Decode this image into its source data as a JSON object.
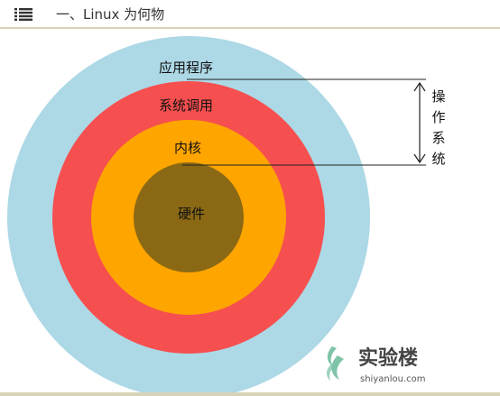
{
  "header": {
    "title": "一、Linux 为何物",
    "icon": "list-icon"
  },
  "diagram": {
    "layers": [
      {
        "label": "应用程序",
        "color": "#add8e6"
      },
      {
        "label": "系统调用",
        "color": "#f64f4f"
      },
      {
        "label": "内核",
        "color": "#ffa500"
      },
      {
        "label": "硬件",
        "color": "#8b6914"
      }
    ],
    "os_label_chars": [
      "操",
      "作",
      "系",
      "统"
    ]
  },
  "watermark": {
    "brand": "实验楼",
    "url": "shiyanlou.com",
    "color": "#7fc4a8"
  }
}
